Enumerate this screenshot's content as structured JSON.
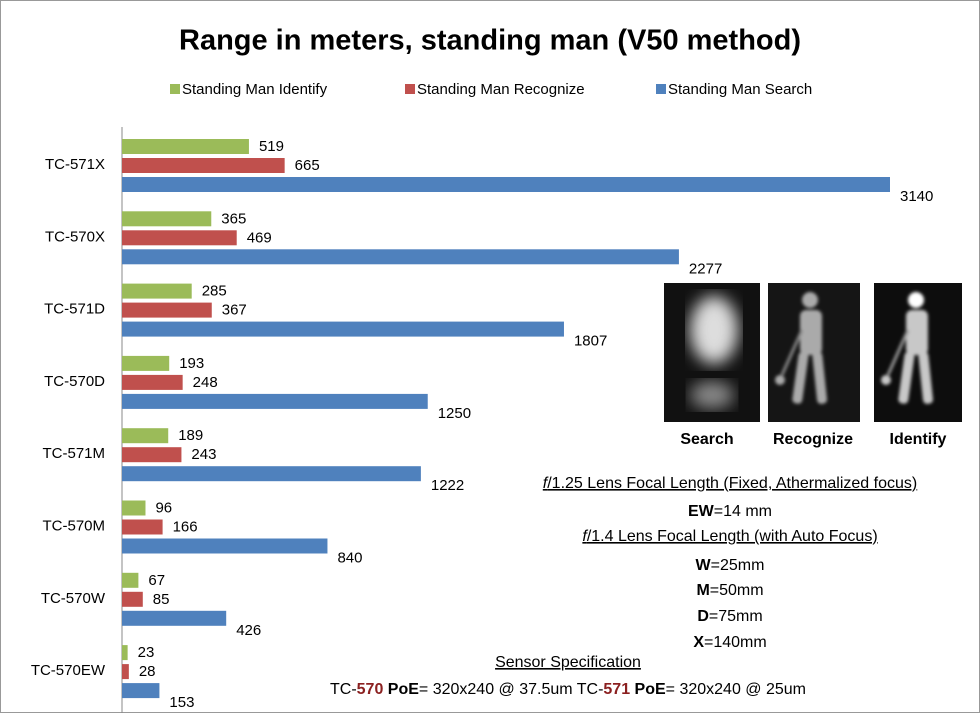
{
  "chart_data": {
    "type": "bar",
    "orientation": "horizontal",
    "title": "Range in meters, standing man (V50 method)",
    "categories": [
      "TC-571X",
      "TC-570X",
      "TC-571D",
      "TC-570D",
      "TC-571M",
      "TC-570M",
      "TC-570W",
      "TC-570EW"
    ],
    "series": [
      {
        "name": "Standing Man Identify",
        "color": "#9bbb59",
        "values": [
          519,
          365,
          285,
          193,
          189,
          96,
          67,
          23
        ]
      },
      {
        "name": "Standing Man Recognize",
        "color": "#c0504d",
        "values": [
          665,
          469,
          367,
          248,
          243,
          166,
          85,
          28
        ]
      },
      {
        "name": "Standing Man Search",
        "color": "#4f81bd",
        "values": [
          3140,
          2277,
          1807,
          1250,
          1222,
          840,
          426,
          153
        ]
      }
    ],
    "legend": "top",
    "images": [
      "Search",
      "Recognize",
      "Identify"
    ],
    "notes": [
      {
        "underline": true,
        "parts": [
          {
            "text": "f",
            "italic": true
          },
          {
            "text": "/1.25 Lens Focal Length (Fixed, Athermalized focus)"
          }
        ]
      },
      {
        "underline": false,
        "parts": [
          {
            "text": "EW",
            "bold": true
          },
          {
            "text": "=14 mm"
          }
        ]
      },
      {
        "underline": true,
        "parts": [
          {
            "text": "f",
            "italic": true
          },
          {
            "text": "/1.4 Lens Focal Length (with Auto Focus)"
          }
        ]
      },
      {
        "underline": false,
        "parts": [
          {
            "text": "W",
            "bold": true
          },
          {
            "text": "=25mm"
          }
        ]
      },
      {
        "underline": false,
        "parts": [
          {
            "text": "M",
            "bold": true
          },
          {
            "text": "=50mm"
          }
        ]
      },
      {
        "underline": false,
        "parts": [
          {
            "text": "D",
            "bold": true
          },
          {
            "text": "=75mm"
          }
        ]
      },
      {
        "underline": false,
        "parts": [
          {
            "text": "X",
            "bold": true
          },
          {
            "text": "=140mm"
          }
        ]
      },
      {
        "underline": true,
        "parts": [
          {
            "text": "Sensor Specification"
          }
        ]
      },
      {
        "underline": false,
        "parts": [
          {
            "text": "TC-"
          },
          {
            "text": "570",
            "bold": true,
            "color": "#8b2020"
          },
          {
            "text": " PoE",
            "bold": true
          },
          {
            "text": "= 320x240 @ 37.5um TC-"
          },
          {
            "text": "571",
            "bold": true,
            "color": "#8b2020"
          },
          {
            "text": " PoE",
            "bold": true
          },
          {
            "text": "= 320x240 @ 25um"
          }
        ]
      }
    ]
  }
}
